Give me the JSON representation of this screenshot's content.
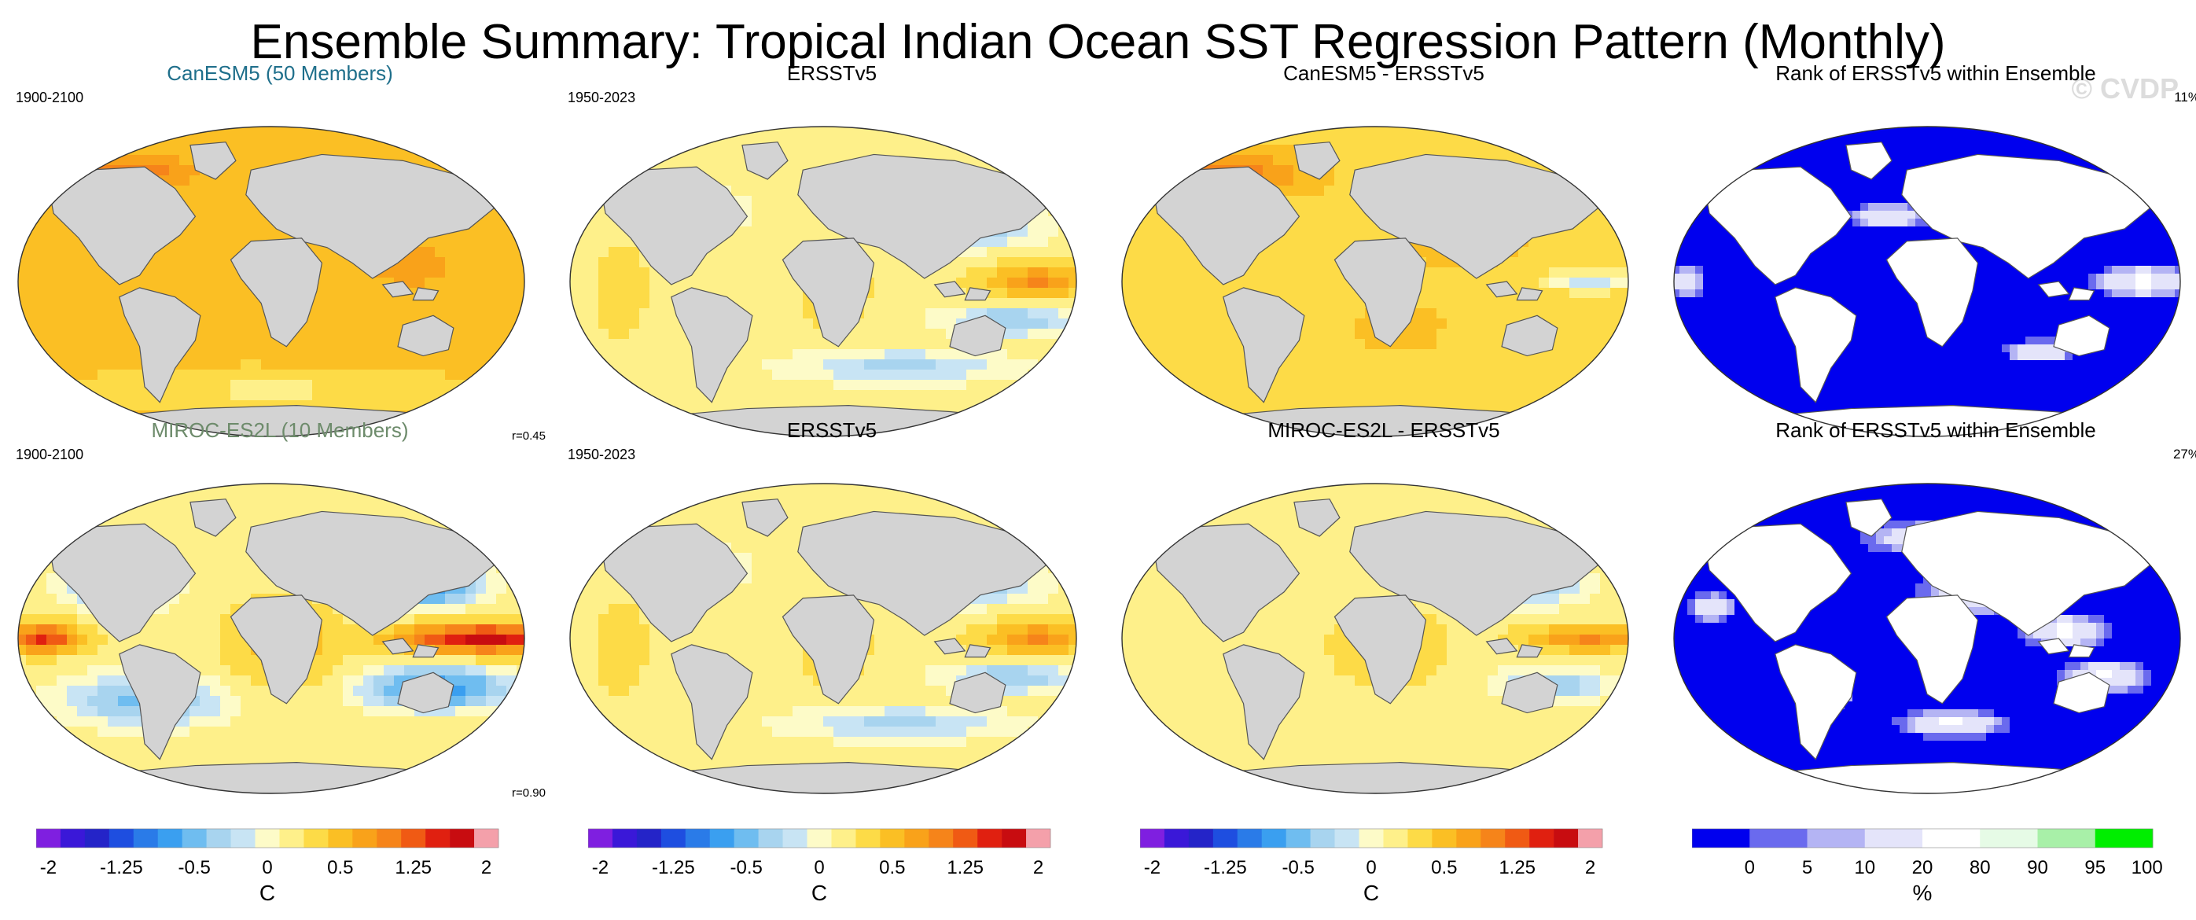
{
  "title": "Ensemble Summary: Tropical Indian Ocean SST Regression Pattern (Monthly)",
  "watermark": "© CVDP",
  "colors": {
    "land": "#d3d3d3",
    "coast": "#555555",
    "model1_title": "#1f6f8b",
    "model2_title": "#6d8b6b",
    "rank_low": "#0000ee",
    "rank_mid": "#ffffff",
    "rank_high": "#00ee00"
  },
  "panels": [
    {
      "id": "p1",
      "title": "CanESM5 (50 Members)",
      "left_label": "1900-2100",
      "right_label": "",
      "corr": "r=0.45",
      "type": "sst",
      "pattern": "canesm"
    },
    {
      "id": "p2",
      "title": "ERSSTv5",
      "left_label": "1950-2023",
      "right_label": "",
      "corr": "",
      "type": "sst",
      "pattern": "obs"
    },
    {
      "id": "p3",
      "title": "CanESM5 - ERSSTv5",
      "left_label": "",
      "right_label": "",
      "corr": "",
      "type": "sst",
      "pattern": "diff1"
    },
    {
      "id": "p4",
      "title": "Rank of ERSSTv5 within Ensemble",
      "left_label": "",
      "right_label": "11%",
      "corr": "",
      "type": "rank",
      "pattern": "rank1"
    },
    {
      "id": "p5",
      "title": "MIROC-ES2L (10 Members)",
      "left_label": "1900-2100",
      "right_label": "",
      "corr": "r=0.90",
      "type": "sst",
      "pattern": "miroc"
    },
    {
      "id": "p6",
      "title": "ERSSTv5",
      "left_label": "1950-2023",
      "right_label": "",
      "corr": "",
      "type": "sst",
      "pattern": "obs"
    },
    {
      "id": "p7",
      "title": "MIROC-ES2L - ERSSTv5",
      "left_label": "",
      "right_label": "",
      "corr": "",
      "type": "sst",
      "pattern": "diff2"
    },
    {
      "id": "p8",
      "title": "Rank of ERSSTv5 within Ensemble",
      "left_label": "",
      "right_label": "27%",
      "corr": "",
      "type": "rank",
      "pattern": "rank2"
    }
  ],
  "colorbars": [
    {
      "id": "cb1",
      "unit": "C",
      "ticks": [
        "-2",
        "-1.25",
        "-0.5",
        "0",
        "0.5",
        "1.25",
        "2"
      ],
      "type": "sst"
    },
    {
      "id": "cb2",
      "unit": "C",
      "ticks": [
        "-2",
        "-1.25",
        "-0.5",
        "0",
        "0.5",
        "1.25",
        "2"
      ],
      "type": "sst"
    },
    {
      "id": "cb3",
      "unit": "C",
      "ticks": [
        "-2",
        "-1.25",
        "-0.5",
        "0",
        "0.5",
        "1.25",
        "2"
      ],
      "type": "sst"
    },
    {
      "id": "cb4",
      "unit": "%",
      "ticks": [
        "0",
        "5",
        "10",
        "20",
        "80",
        "90",
        "95",
        "100"
      ],
      "type": "rank"
    }
  ],
  "chart_data": {
    "type": "heatmap",
    "title": "Ensemble Summary: Tropical Indian Ocean SST Regression Pattern (Monthly)",
    "projection": "Robinson",
    "sst_levels": [
      -2,
      -1.75,
      -1.5,
      -1.25,
      -1,
      -0.75,
      -0.5,
      -0.25,
      -0.1,
      0,
      0.1,
      0.25,
      0.5,
      0.75,
      1,
      1.25,
      1.5,
      1.75,
      2
    ],
    "sst_colors": [
      "#7f1fe0",
      "#3a18d8",
      "#2424c8",
      "#1e4ee0",
      "#2a7be8",
      "#3a9ff0",
      "#6fbdf0",
      "#a8d4ef",
      "#c8e4f4",
      "#fdfbc8",
      "#fef08a",
      "#fddb47",
      "#fbbf24",
      "#f9a21a",
      "#f6841a",
      "#f05a14",
      "#e02010",
      "#c80c10",
      "#f4a0aa"
    ],
    "rank_levels": [
      0,
      5,
      10,
      20,
      80,
      90,
      95,
      100
    ],
    "rank_colors": [
      "#0000ee",
      "#6a6aee",
      "#b4b4f4",
      "#e4e4fa",
      "#ffffff",
      "#e6fbe6",
      "#a8f0a8",
      "#00ee00"
    ],
    "rows": [
      {
        "model": "CanESM5 (50 Members)",
        "period": "1900-2100",
        "obs_period": "1950-2023",
        "pattern_correlation": 0.45,
        "rank_fraction_label": "11%"
      },
      {
        "model": "MIROC-ES2L (10 Members)",
        "period": "1900-2100",
        "obs_period": "1950-2023",
        "pattern_correlation": 0.9,
        "rank_fraction_label": "27%"
      }
    ],
    "units": {
      "regression": "C",
      "rank": "%"
    }
  }
}
